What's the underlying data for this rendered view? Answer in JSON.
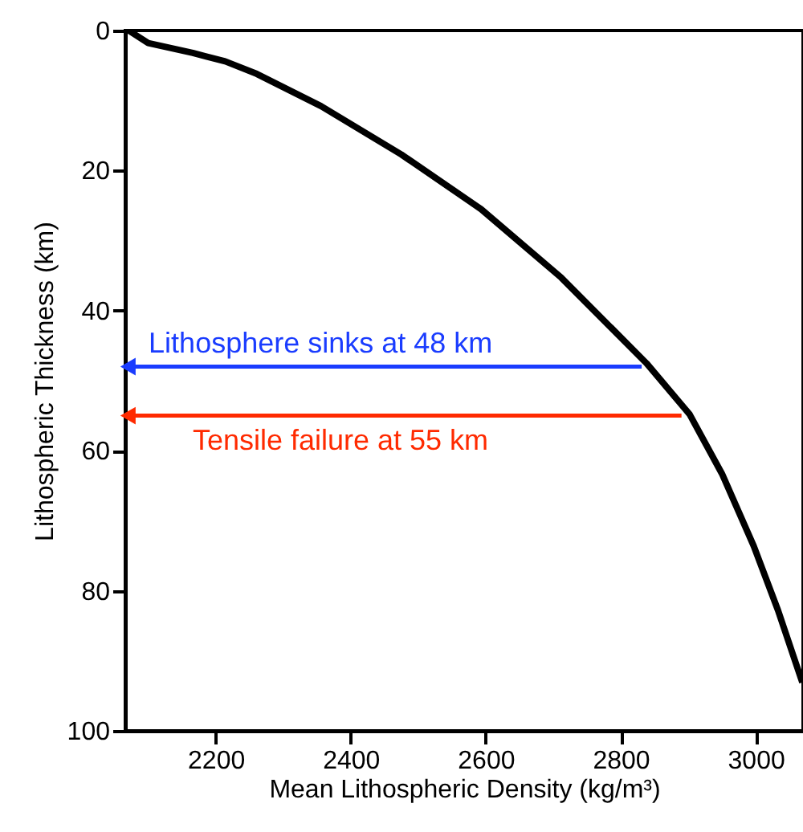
{
  "chart_data": {
    "type": "line",
    "xlabel": "Mean Lithospheric Density (kg/m³)",
    "ylabel": "Lithospheric Thickness (km)",
    "xlim": [
      2066,
      3070
    ],
    "xticks": [
      2200,
      2400,
      2600,
      2800,
      3000
    ],
    "ylim": [
      100,
      0
    ],
    "yticks": [
      0,
      20,
      40,
      60,
      80,
      100
    ],
    "grid": false,
    "line_style": "solid",
    "series": [
      {
        "color": "#000000",
        "x": [
          2071,
          2100,
          2166,
          2214,
          2261,
          2356,
          2475,
          2593,
          2712,
          2838,
          2902,
          2950,
          2997,
          3033,
          3069
        ],
        "values": [
          0,
          1.8,
          3.2,
          4.4,
          6.2,
          10.8,
          17.7,
          25.5,
          35.3,
          47.5,
          54.8,
          63.3,
          73.6,
          82.8,
          93.1
        ]
      },
      {
        "name": "Lithosphere sinks at 48 km",
        "color": "#1a3cff",
        "x": [
          2831,
          2070
        ],
        "values": [
          48,
          48
        ]
      },
      {
        "name": "Tensile failure at 55 km",
        "color": "#ff2a00",
        "x": [
          2890,
          2070
        ],
        "values": [
          55,
          55
        ]
      }
    ]
  }
}
